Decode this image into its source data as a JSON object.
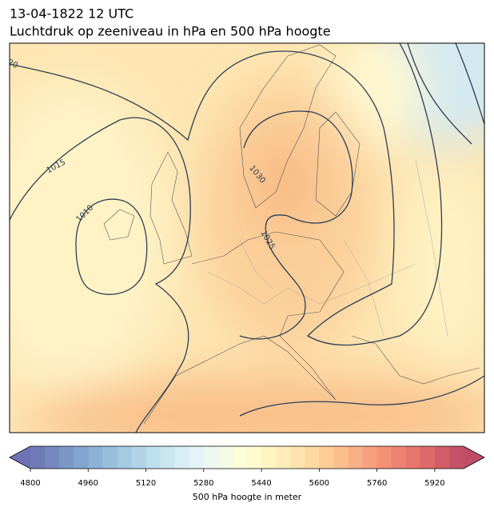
{
  "header": {
    "date": "13-04-1822 12 UTC",
    "title": "Luchtdruk op zeeniveau in hPa en 500 hPa hoogte"
  },
  "map": {
    "contour_labels": [
      "20",
      "1015",
      "1010",
      "1030",
      "1025"
    ]
  },
  "colorbar": {
    "colormap": "RdYlBu_r",
    "lim": [
      4800,
      6000
    ],
    "step": 40,
    "ticks": [
      4800,
      4960,
      5120,
      5280,
      5440,
      5600,
      5760,
      5920
    ],
    "label": "500 hPa hoogte in meter"
  }
}
